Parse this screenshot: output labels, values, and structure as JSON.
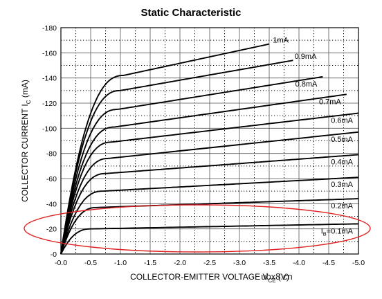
{
  "chart_data": {
    "type": "line",
    "title": "Static Characteristic",
    "xlabel": {
      "text": "COLLECTOR-EMITTER VOLTAGE",
      "symbol": "V",
      "subscript": "CE",
      "unit": "(V)"
    },
    "ylabel": {
      "text": "COLLECTOR CURRENT",
      "symbol": "I",
      "subscript": "C",
      "unit": "(mA)"
    },
    "xlim": [
      0.0,
      -5.0
    ],
    "ylim": [
      0,
      -180
    ],
    "x_ticks": [
      "-0.0",
      "-0.5",
      "-1.0",
      "-1.5",
      "-2.0",
      "-2.5",
      "-3.0",
      "-3.5",
      "-4.0",
      "-4.5",
      "-5.0"
    ],
    "y_ticks": [
      "-0",
      "-20",
      "-40",
      "-60",
      "-80",
      "-100",
      "-120",
      "-140",
      "-160",
      "-180"
    ],
    "grid": "major solid, minor dotted",
    "legend": "inline labels at right end of each curve",
    "series": [
      {
        "label": "I",
        "label_sub": "B",
        "label_rest": "=0.1mA",
        "knee": -0.5,
        "sat": -20,
        "end_x": -5.0,
        "end_y": -24
      },
      {
        "label": "0.2mA",
        "knee": -0.6,
        "sat": -37,
        "end_x": -5.0,
        "end_y": -44
      },
      {
        "label": "0.3mA",
        "knee": -0.7,
        "sat": -50,
        "end_x": -5.0,
        "end_y": -61
      },
      {
        "label": "0.4mA",
        "knee": -0.75,
        "sat": -64,
        "end_x": -5.0,
        "end_y": -79
      },
      {
        "label": "0.5mA",
        "knee": -0.8,
        "sat": -76,
        "end_x": -5.0,
        "end_y": -97
      },
      {
        "label": "0.6mA",
        "knee": -0.85,
        "sat": -89,
        "end_x": -5.0,
        "end_y": -112
      },
      {
        "label": "0.7mA",
        "knee": -0.9,
        "sat": -101,
        "end_x": -4.8,
        "end_y": -127
      },
      {
        "label": "0.8mA",
        "knee": -0.95,
        "sat": -115,
        "end_x": -4.4,
        "end_y": -141
      },
      {
        "label": "0.9mA",
        "knee": -1.0,
        "sat": -130,
        "end_x": -3.9,
        "end_y": -154
      },
      {
        "label": "1mA",
        "knee": -1.05,
        "sat": -142,
        "end_x": -3.5,
        "end_y": -167
      }
    ],
    "annotation": {
      "shape": "ellipse",
      "color": "#e02020",
      "encloses": [
        "I_B=0.1mA",
        "0.2mA"
      ]
    },
    "watermark": "ubx8.cn"
  }
}
